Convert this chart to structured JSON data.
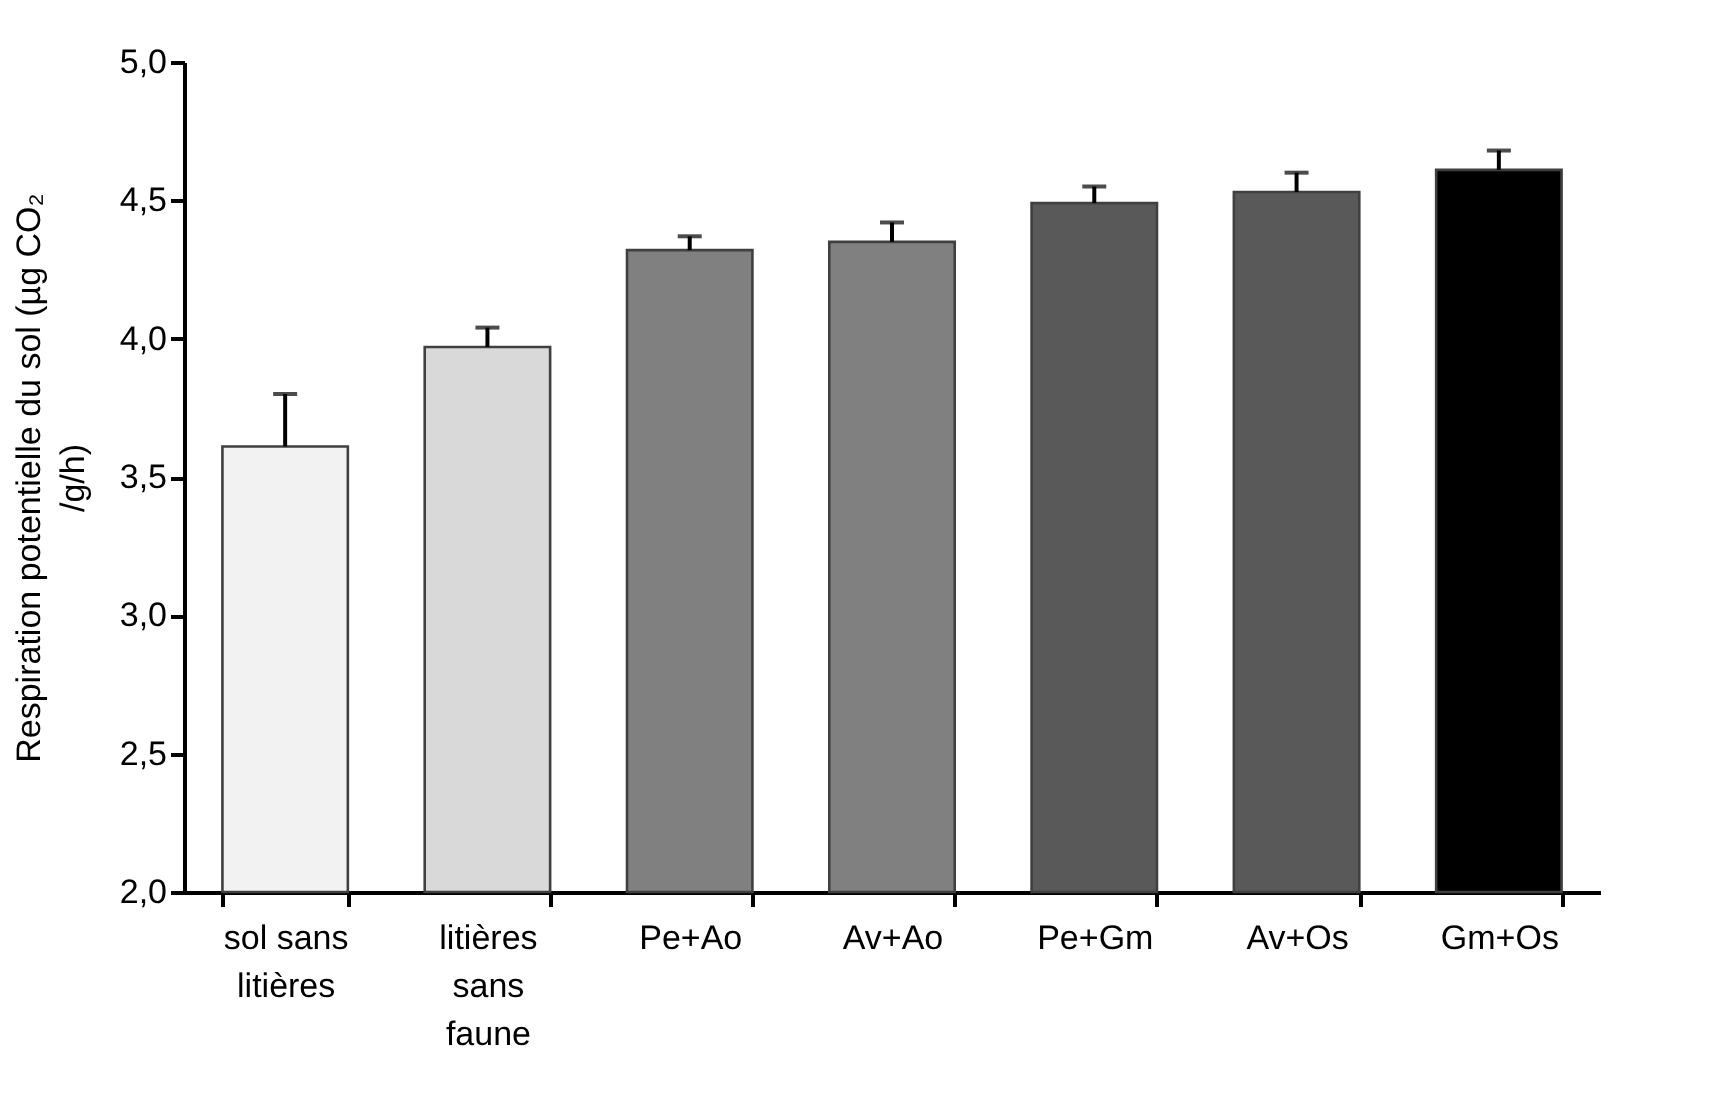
{
  "chart_data": {
    "type": "bar",
    "ylabel": "Respiration potentielle du sol (µg CO₂ /g/h)",
    "categories": [
      "sol sans litières",
      "litières sans faune",
      "Pe+Ao",
      "Av+Ao",
      "Pe+Gm",
      "Av+Os",
      "Gm+Os"
    ],
    "values": [
      3.61,
      3.97,
      4.32,
      4.35,
      4.49,
      4.53,
      4.61
    ],
    "errors": [
      0.19,
      0.07,
      0.05,
      0.07,
      0.06,
      0.07,
      0.07
    ],
    "colors": [
      "#f2f2f2",
      "#d9d9d9",
      "#808080",
      "#808080",
      "#595959",
      "#595959",
      "#000000"
    ],
    "ylim": [
      2,
      5
    ],
    "yticks": [
      {
        "value": 2,
        "label": "2,0"
      },
      {
        "value": 2.5,
        "label": "2,5"
      },
      {
        "value": 3,
        "label": "3,0"
      },
      {
        "value": 3.5,
        "label": "3,5"
      },
      {
        "value": 4,
        "label": "4,0"
      },
      {
        "value": 4.5,
        "label": "4,5"
      },
      {
        "value": 5,
        "label": "5,0"
      }
    ],
    "grid": false,
    "legend": false
  }
}
